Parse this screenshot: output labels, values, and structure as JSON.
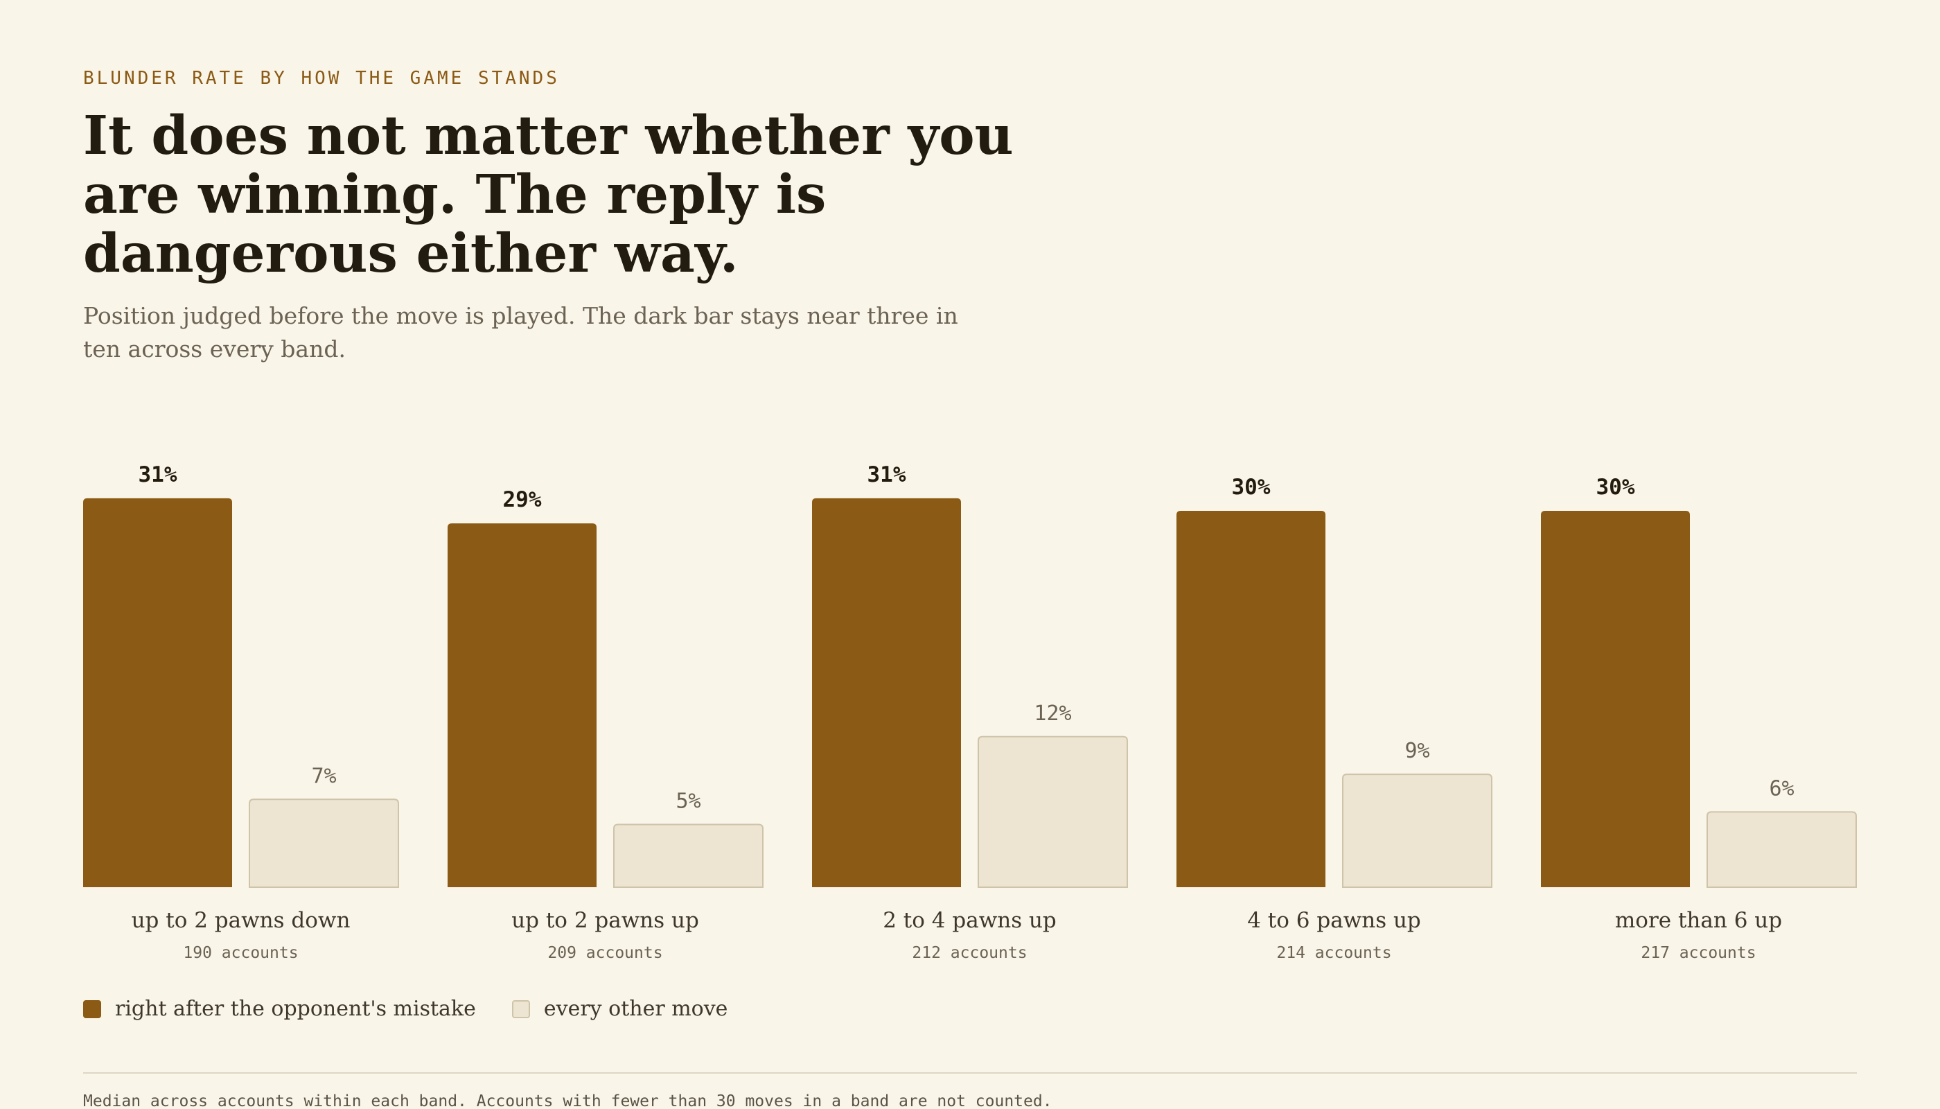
{
  "header": {
    "eyebrow": "BLUNDER RATE BY HOW THE GAME STANDS",
    "title": "It does not matter whether you are winning. The reply is dangerous either way.",
    "subtitle": "Position judged before the move is played. The dark bar stays near three in ten across every band."
  },
  "legend": {
    "mistake_label": "right after the opponent's mistake",
    "other_label": "every other move"
  },
  "footnote": "Median across accounts within each band. Accounts with fewer than 30 moves in a band are not counted.",
  "colors": {
    "background": "#f9f5e9",
    "mistake_bar": "#8b5a14",
    "other_bar": "#ede5d2",
    "other_bar_border": "#cfc4aa",
    "eyebrow": "#8b5a14"
  },
  "chart_data": {
    "type": "bar",
    "title": "It does not matter whether you are winning. The reply is dangerous either way.",
    "categories": [
      "up to 2 pawns down",
      "up to 2 pawns up",
      "2 to 4 pawns up",
      "4 to 6 pawns up",
      "more than 6 up"
    ],
    "category_notes": [
      "190 accounts",
      "209 accounts",
      "212 accounts",
      "214 accounts",
      "217 accounts"
    ],
    "series": [
      {
        "name": "right after the opponent's mistake",
        "values": [
          31,
          29,
          31,
          30,
          30
        ]
      },
      {
        "name": "every other move",
        "values": [
          7,
          5,
          12,
          9,
          6
        ]
      }
    ],
    "value_suffix": "%",
    "ylim": [
      0,
      33
    ],
    "grid": false,
    "legend_position": "bottom-left"
  }
}
